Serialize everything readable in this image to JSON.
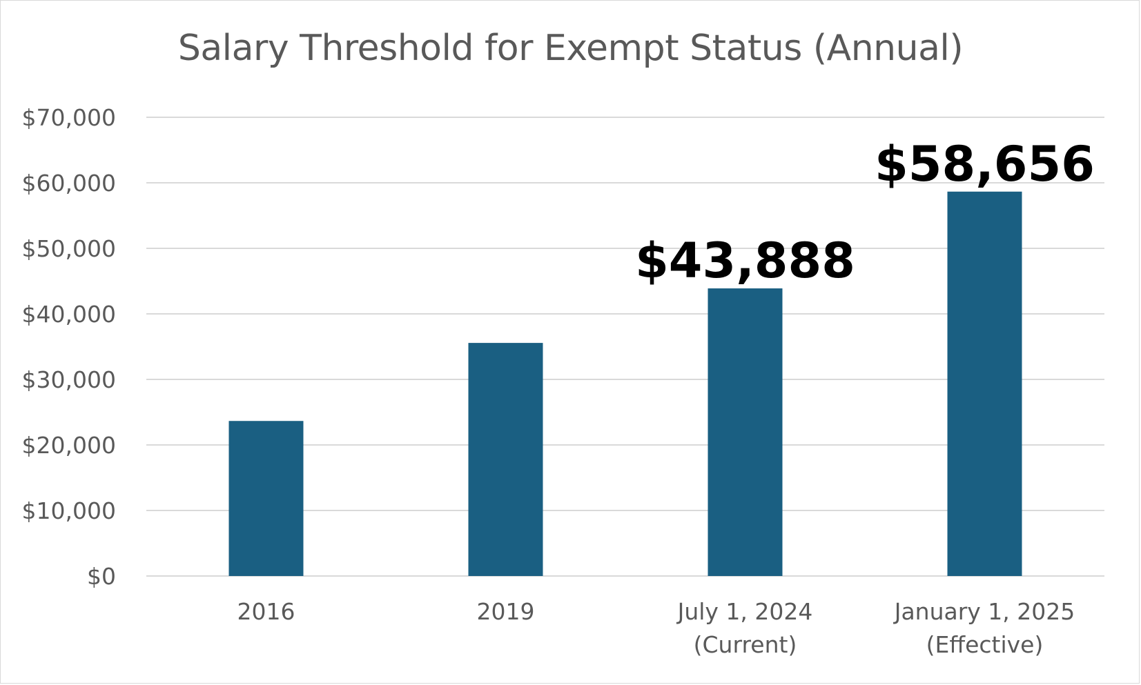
{
  "chart_data": {
    "type": "bar",
    "title": "Salary Threshold for Exempt Status (Annual)",
    "categories": [
      [
        "2016"
      ],
      [
        "2019"
      ],
      [
        "July 1, 2024",
        "(Current)"
      ],
      [
        "January 1, 2025",
        "(Effective)"
      ]
    ],
    "values": [
      23660,
      35568,
      43888,
      58656
    ],
    "data_labels": [
      "",
      "",
      "$43,888",
      "$58,656"
    ],
    "ylim": [
      0,
      70000
    ],
    "yticks": [
      0,
      10000,
      20000,
      30000,
      40000,
      50000,
      60000,
      70000
    ],
    "ytick_labels": [
      "$0",
      "$10,000",
      "$20,000",
      "$30,000",
      "$40,000",
      "$50,000",
      "$60,000",
      "$70,000"
    ],
    "xlabel": "",
    "ylabel": "",
    "grid": true,
    "legend": "none",
    "bar_color": "#1a5f82",
    "grid_color": "#d9d9d9"
  }
}
